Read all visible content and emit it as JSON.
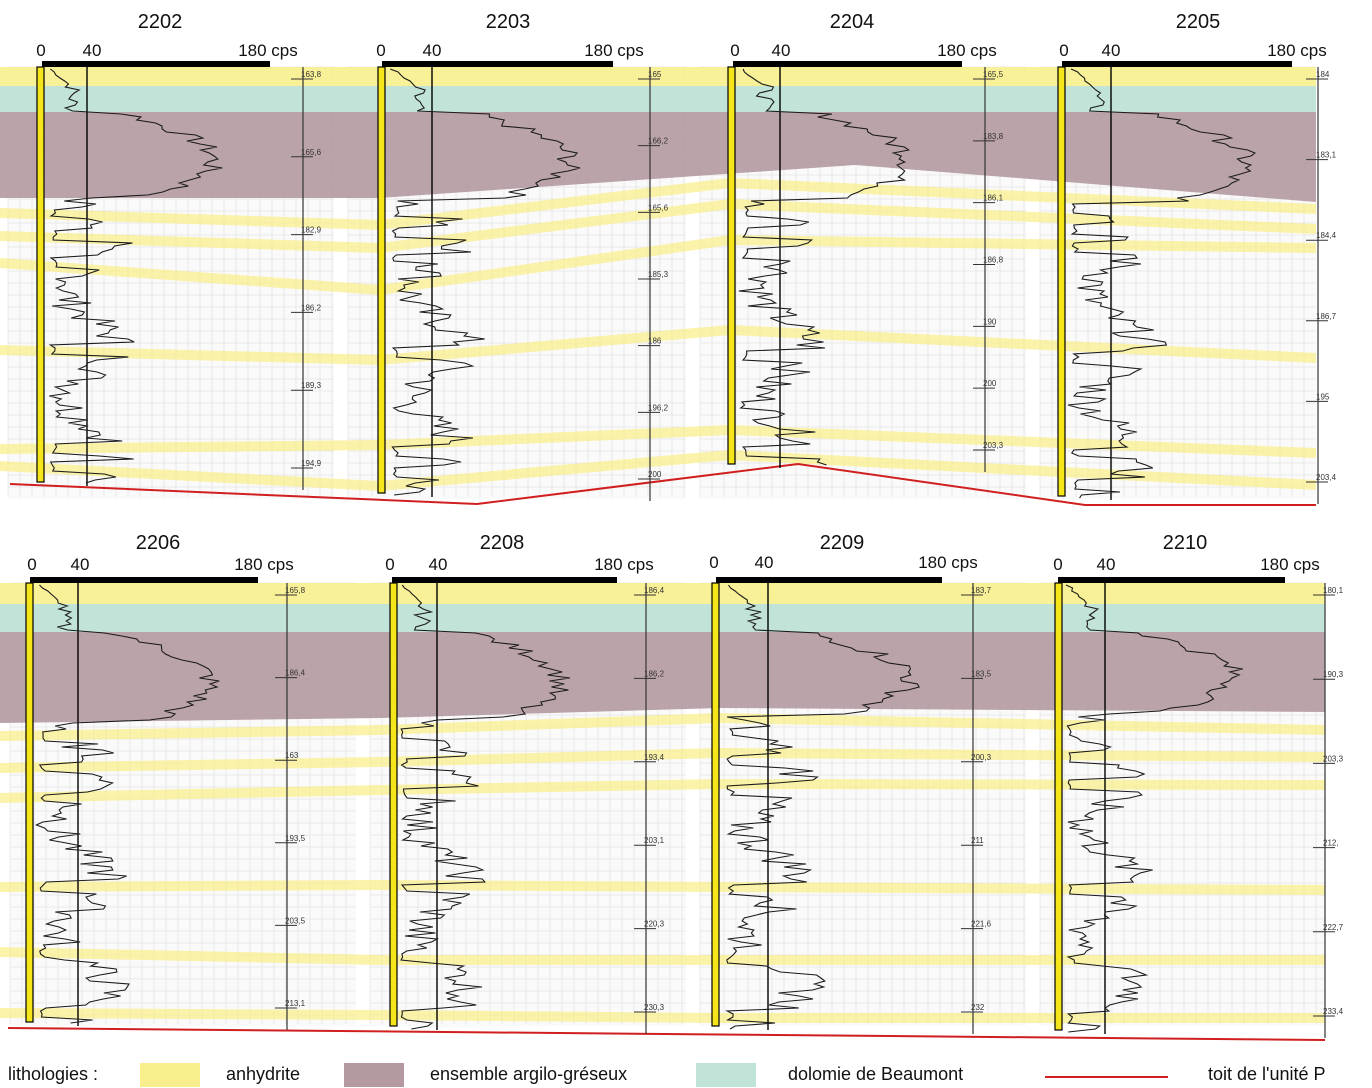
{
  "rows": [
    {
      "logs": [
        {
          "id": "2202",
          "scale": {
            "min": "0",
            "mid": "40",
            "max": "180 cps"
          },
          "depths": [
            "163,8",
            "165,6",
            "182,9",
            "186,2",
            "189,3",
            "194,9"
          ]
        },
        {
          "id": "2203",
          "scale": {
            "min": "0",
            "mid": "40",
            "max": "180 cps"
          },
          "depths": [
            "165",
            "166,2",
            "165,6",
            "185,3",
            "186",
            "196,2",
            "200"
          ]
        },
        {
          "id": "2204",
          "scale": {
            "min": "0",
            "mid": "40",
            "max": "180 cps"
          },
          "depths": [
            "165,5",
            "183,8",
            "186,1",
            "186,8",
            "190",
            "200",
            "203,3"
          ]
        },
        {
          "id": "2205",
          "scale": {
            "min": "0",
            "mid": "40",
            "max": "180 cps"
          },
          "depths": [
            "184",
            "183,1",
            "184,4",
            "186,7",
            "195",
            "203,4"
          ]
        }
      ]
    },
    {
      "logs": [
        {
          "id": "2206",
          "scale": {
            "min": "0",
            "mid": "40",
            "max": "180 cps"
          },
          "depths": [
            "165,8",
            "186,4",
            "163",
            "193,5",
            "203,5",
            "213,1"
          ]
        },
        {
          "id": "2208",
          "scale": {
            "min": "0",
            "mid": "40",
            "max": "180 cps"
          },
          "depths": [
            "186,4",
            "186,2",
            "193,4",
            "203,1",
            "220,3",
            "230,3"
          ]
        },
        {
          "id": "2209",
          "scale": {
            "min": "0",
            "mid": "40",
            "max": "180 cps"
          },
          "depths": [
            "183,7",
            "183,5",
            "200,3",
            "211",
            "221,6",
            "232"
          ]
        },
        {
          "id": "2210",
          "scale": {
            "min": "0",
            "mid": "40",
            "max": "180 cps"
          },
          "depths": [
            "180,1",
            "190,3",
            "203,3",
            "212,",
            "222,7",
            "233,4"
          ]
        }
      ]
    }
  ],
  "legend": {
    "title": "lithologies :",
    "items": [
      {
        "label": "anhydrite",
        "color": "#f8ef8c",
        "kind": "box"
      },
      {
        "label": "ensemble argilo-gréseux",
        "color": "#b49aa0",
        "kind": "box"
      },
      {
        "label": "dolomie de Beaumont",
        "color": "#bfe3d6",
        "kind": "box"
      },
      {
        "label": "toit de l'unité P",
        "color": "#d11f1f",
        "kind": "line"
      }
    ]
  },
  "colors": {
    "anhydrite": "#f8ef8c",
    "argilo": "#b49aa0",
    "dolomie": "#bfe3d6",
    "toit": "#d11f1f",
    "grid": "#dcdcdc",
    "trace": "#1a1a1a"
  }
}
